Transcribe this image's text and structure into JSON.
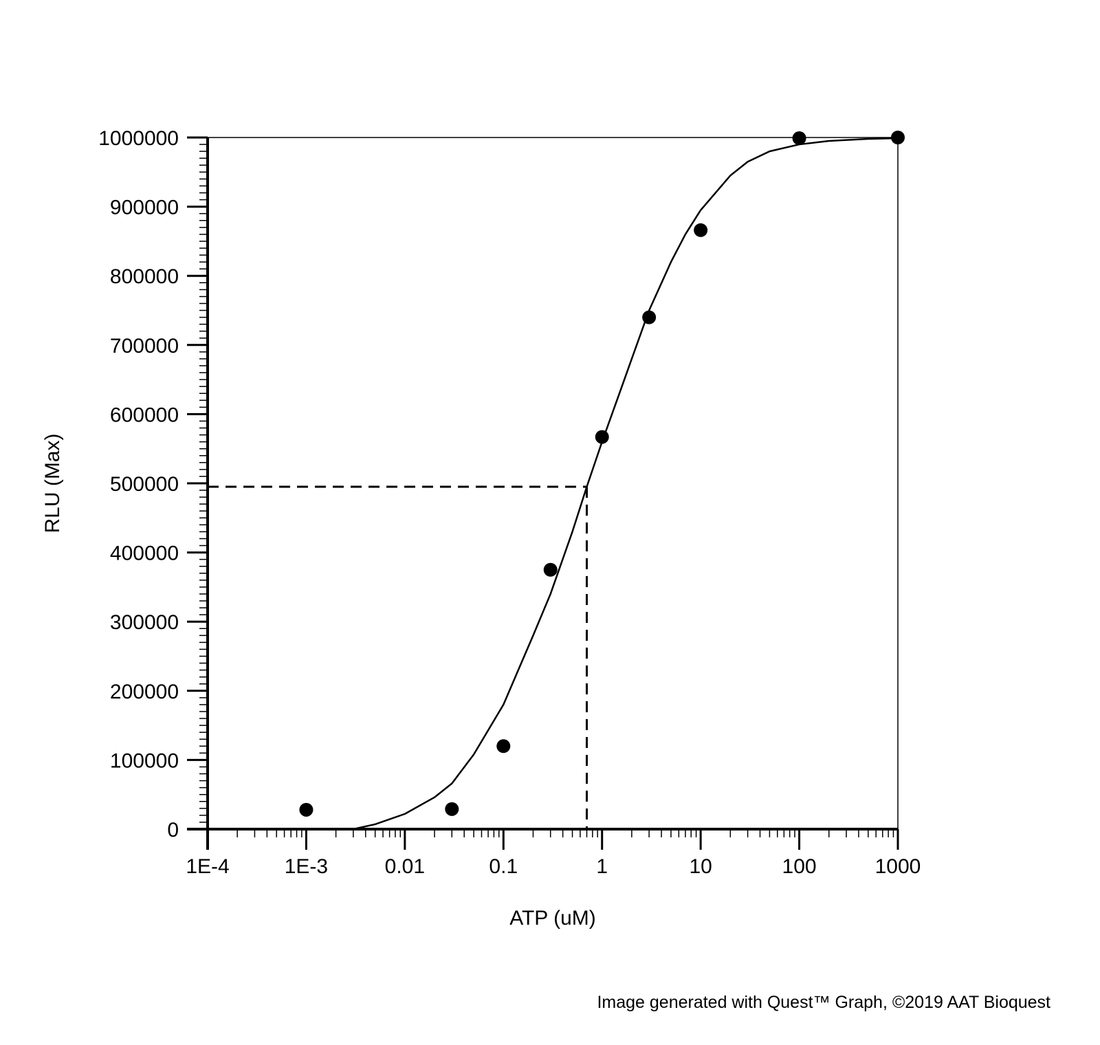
{
  "chart_data": {
    "type": "scatter",
    "title": "",
    "xlabel": "ATP (uM)",
    "ylabel": "RLU (Max)",
    "x_scale": "log",
    "xlim": [
      0.0001,
      1000
    ],
    "ylim": [
      0,
      1000000
    ],
    "x_ticks": [
      {
        "value": 0.0001,
        "label": "1E-4"
      },
      {
        "value": 0.001,
        "label": "1E-3"
      },
      {
        "value": 0.01,
        "label": "0.01"
      },
      {
        "value": 0.1,
        "label": "0.1"
      },
      {
        "value": 1,
        "label": "1"
      },
      {
        "value": 10,
        "label": "10"
      },
      {
        "value": 100,
        "label": "100"
      },
      {
        "value": 1000,
        "label": "1000"
      }
    ],
    "y_ticks": [
      {
        "value": 0,
        "label": "0"
      },
      {
        "value": 100000,
        "label": "100000"
      },
      {
        "value": 200000,
        "label": "200000"
      },
      {
        "value": 300000,
        "label": "300000"
      },
      {
        "value": 400000,
        "label": "400000"
      },
      {
        "value": 500000,
        "label": "500000"
      },
      {
        "value": 600000,
        "label": "600000"
      },
      {
        "value": 700000,
        "label": "700000"
      },
      {
        "value": 800000,
        "label": "800000"
      },
      {
        "value": 900000,
        "label": "900000"
      },
      {
        "value": 1000000,
        "label": "1000000"
      }
    ],
    "grid": false,
    "legend": "none",
    "points": {
      "x": [
        0.001,
        0.03,
        0.1,
        0.3,
        1,
        3,
        10,
        100,
        1000
      ],
      "y": [
        28000,
        29000,
        120000,
        375000,
        567000,
        740000,
        866000,
        999000,
        1000000
      ]
    },
    "fit_curve": {
      "x": [
        0.003,
        0.005,
        0.01,
        0.02,
        0.03,
        0.05,
        0.1,
        0.2,
        0.3,
        0.5,
        0.7,
        1,
        1.5,
        2,
        3,
        5,
        7,
        10,
        20,
        30,
        50,
        100,
        200,
        500,
        1000
      ],
      "y": [
        0,
        7000,
        22000,
        46000,
        66000,
        108000,
        180000,
        280000,
        340000,
        430000,
        495000,
        560000,
        630000,
        680000,
        750000,
        820000,
        860000,
        895000,
        945000,
        965000,
        980000,
        990000,
        995000,
        998000,
        999000
      ]
    },
    "reference_lines": {
      "x": 0.7,
      "y": 495000,
      "style": "dashed"
    },
    "colors": {
      "points": "#000000",
      "curve": "#000000",
      "axes": "#000000"
    }
  },
  "footer": {
    "credit": "Image generated with Quest™ Graph, ©2019 AAT Bioquest"
  }
}
